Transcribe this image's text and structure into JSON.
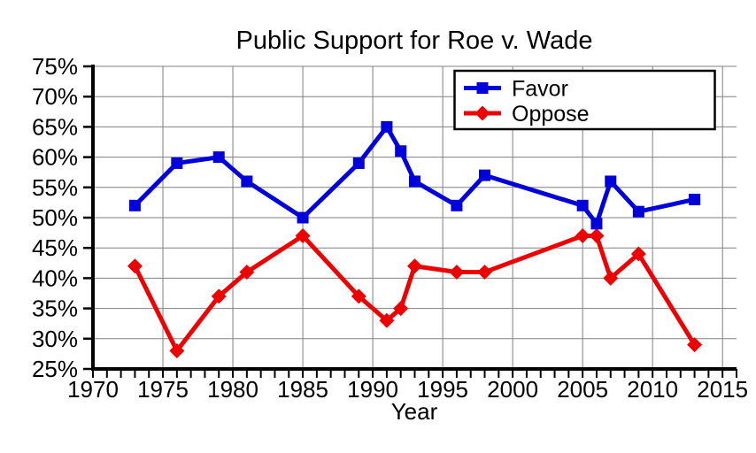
{
  "page": {
    "background": "#ffffff"
  },
  "chart_data": {
    "type": "line",
    "title": "Public Support for Roe v. Wade",
    "xlabel": "Year",
    "ylabel": "",
    "xlim": [
      1970,
      2016
    ],
    "ylim": [
      25,
      75
    ],
    "grid": true,
    "legend_position": "top-right-inside",
    "x_ticks": [
      1970,
      1975,
      1980,
      1985,
      1990,
      1995,
      2000,
      2005,
      2010,
      2015
    ],
    "x_tick_labels": [
      "1970",
      "1975",
      "1980",
      "1985",
      "1990",
      "1995",
      "2000",
      "2005",
      "2010",
      "2015"
    ],
    "x_minor_tick_every_year": true,
    "y_ticks": [
      25,
      30,
      35,
      40,
      45,
      50,
      55,
      60,
      65,
      70,
      75
    ],
    "y_tick_labels": [
      "25%",
      "30%",
      "35%",
      "40%",
      "45%",
      "50%",
      "55%",
      "60%",
      "65%",
      "70%",
      "75%"
    ],
    "x": [
      1973,
      1976,
      1979,
      1981,
      1985,
      1989,
      1991,
      1992,
      1993,
      1996,
      1998,
      2005,
      2006,
      2007,
      2009,
      2013
    ],
    "series": [
      {
        "name": "Favor",
        "color": "#0000dd",
        "marker": "square",
        "values": [
          52,
          59,
          60,
          56,
          50,
          59,
          65,
          61,
          56,
          52,
          57,
          52,
          49,
          56,
          51,
          53
        ]
      },
      {
        "name": "Oppose",
        "color": "#ee0000",
        "marker": "diamond",
        "values": [
          42,
          28,
          37,
          41,
          47,
          37,
          33,
          35,
          42,
          41,
          41,
          47,
          47,
          40,
          44,
          29
        ]
      }
    ],
    "colors": {
      "grid": "#808080",
      "axis": "#000000",
      "text": "#000000",
      "legend_border": "#000000",
      "background": "#ffffff"
    }
  }
}
